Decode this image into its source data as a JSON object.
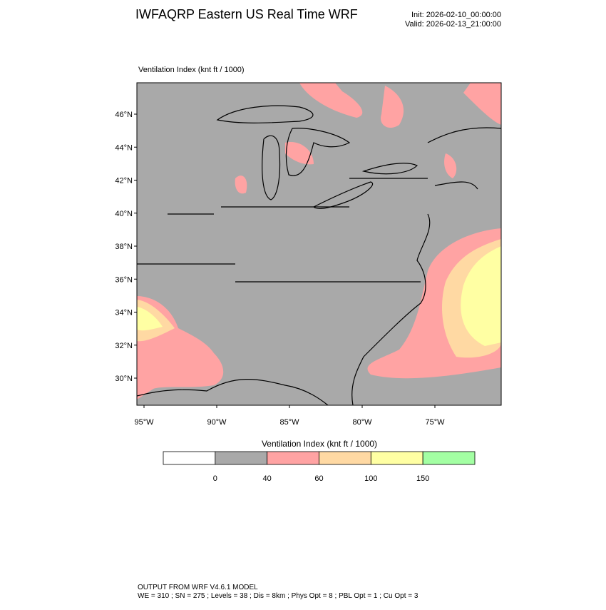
{
  "header": {
    "title": "IWFAQRP Eastern US Real Time WRF",
    "init": "Init: 2026-02-10_00:00:00",
    "valid": "Valid: 2026-02-13_21:00:00"
  },
  "map": {
    "title": "Ventilation Index   (knt ft / 1000)",
    "lat_labels": [
      "46°N",
      "44°N",
      "42°N",
      "40°N",
      "38°N",
      "36°N",
      "34°N",
      "32°N",
      "30°N"
    ],
    "lon_labels": [
      "95°W",
      "90°W",
      "85°W",
      "80°W",
      "75°W"
    ]
  },
  "colorbar": {
    "title": "Ventilation Index  (knt ft / 1000)",
    "colors": [
      "#ffffff",
      "#a9a9a9",
      "#ffa3a3",
      "#ffd9a3",
      "#ffffa3",
      "#a3ffa3"
    ],
    "levels": [
      0,
      40,
      60,
      100,
      150
    ]
  },
  "footer": {
    "line1": "OUTPUT FROM WRF V4.6.1 MODEL",
    "line2": "WE = 310 ; SN = 275 ; Levels = 38 ; Dis = 8km ; Phys Opt = 8 ; PBL Opt = 1 ; Cu Opt = 3"
  }
}
